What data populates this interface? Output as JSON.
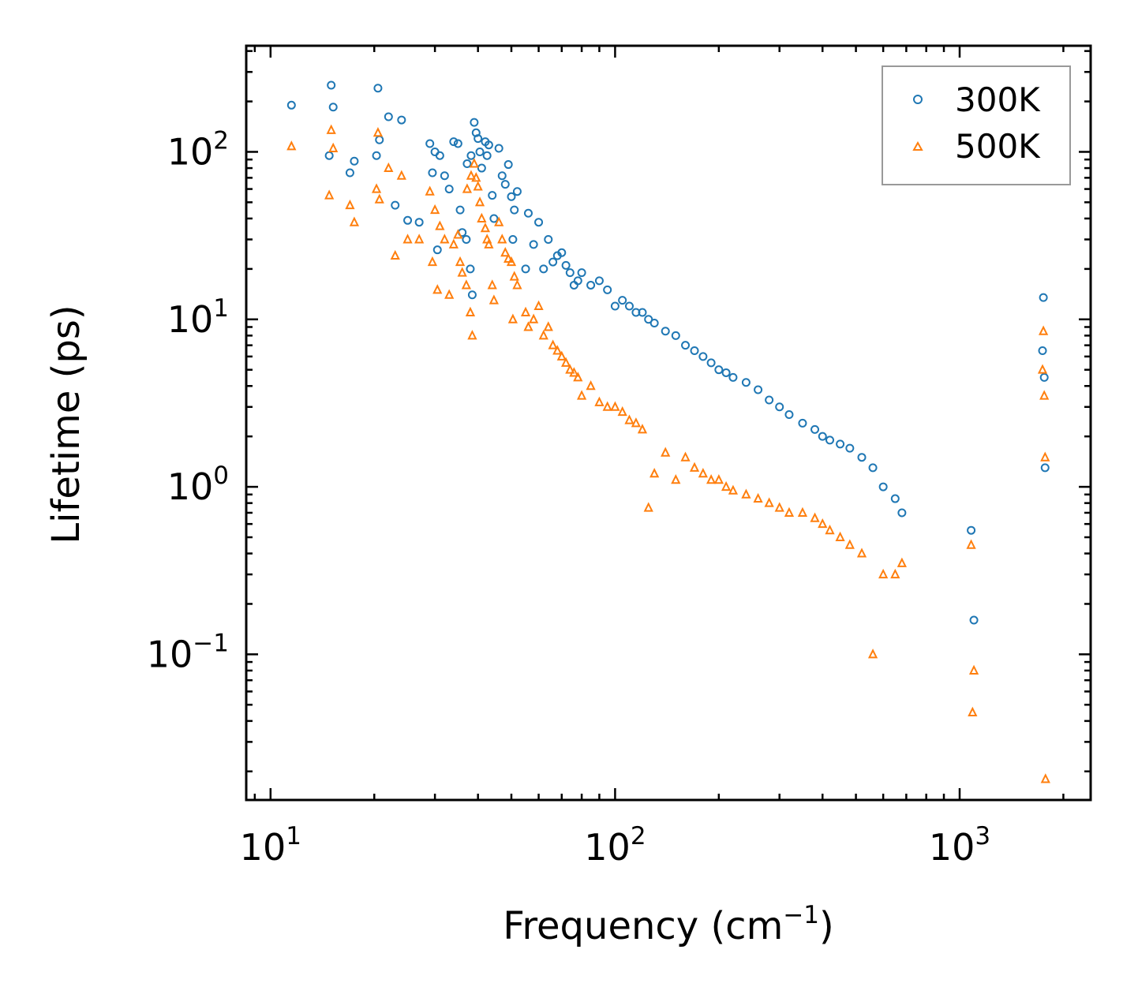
{
  "chart_data": {
    "type": "scatter",
    "title": "",
    "xlabel_base": "Frequency (cm",
    "xlabel_sup": "−1",
    "xlabel_end": ")",
    "ylabel": "Lifetime (ps)",
    "xscale": "log",
    "yscale": "log",
    "xlim": [
      8.5,
      2400
    ],
    "ylim": [
      0.0135,
      430
    ],
    "x_ticks": [
      {
        "value": 10,
        "base": "10",
        "exp": "1"
      },
      {
        "value": 100,
        "base": "10",
        "exp": "2"
      },
      {
        "value": 1000,
        "base": "10",
        "exp": "3"
      }
    ],
    "y_ticks": [
      {
        "value": 0.1,
        "base": "10",
        "exp": "−1"
      },
      {
        "value": 1,
        "base": "10",
        "exp": "0"
      },
      {
        "value": 10,
        "base": "10",
        "exp": "1"
      },
      {
        "value": 100,
        "base": "10",
        "exp": "2"
      }
    ],
    "legend_position": "top-right",
    "series": [
      {
        "name": "300K",
        "marker": "circle",
        "color": "#1f77b4",
        "points": [
          [
            11.5,
            190
          ],
          [
            15,
            250
          ],
          [
            15.2,
            185
          ],
          [
            14.8,
            95
          ],
          [
            17,
            75
          ],
          [
            17.5,
            88
          ],
          [
            20.5,
            240
          ],
          [
            20.3,
            95
          ],
          [
            20.7,
            118
          ],
          [
            22,
            162
          ],
          [
            24,
            155
          ],
          [
            23,
            48
          ],
          [
            25,
            39
          ],
          [
            27,
            38
          ],
          [
            29,
            112
          ],
          [
            30,
            100
          ],
          [
            31,
            95
          ],
          [
            29.5,
            75
          ],
          [
            32,
            72
          ],
          [
            33,
            60
          ],
          [
            34,
            115
          ],
          [
            35,
            112
          ],
          [
            30.5,
            26
          ],
          [
            36,
            33
          ],
          [
            35.5,
            45
          ],
          [
            37,
            30
          ],
          [
            38,
            20
          ],
          [
            38.5,
            14
          ],
          [
            37.2,
            85
          ],
          [
            38.2,
            95
          ],
          [
            39,
            150
          ],
          [
            39.5,
            130
          ],
          [
            40,
            120
          ],
          [
            40.5,
            100
          ],
          [
            41,
            80
          ],
          [
            42,
            115
          ],
          [
            42.5,
            95
          ],
          [
            43,
            110
          ],
          [
            44,
            55
          ],
          [
            44.5,
            40
          ],
          [
            46,
            105
          ],
          [
            47,
            72
          ],
          [
            48,
            64
          ],
          [
            49,
            84
          ],
          [
            50,
            54
          ],
          [
            51,
            45
          ],
          [
            52,
            58
          ],
          [
            50.5,
            30
          ],
          [
            55,
            20
          ],
          [
            56,
            43
          ],
          [
            58,
            28
          ],
          [
            60,
            38
          ],
          [
            62,
            20
          ],
          [
            64,
            30
          ],
          [
            66,
            22
          ],
          [
            68,
            24
          ],
          [
            70,
            25
          ],
          [
            72,
            21
          ],
          [
            74,
            19
          ],
          [
            76,
            16
          ],
          [
            78,
            17
          ],
          [
            80,
            19
          ],
          [
            85,
            16
          ],
          [
            90,
            17
          ],
          [
            95,
            15
          ],
          [
            100,
            12
          ],
          [
            105,
            13
          ],
          [
            110,
            12
          ],
          [
            115,
            11
          ],
          [
            120,
            11
          ],
          [
            125,
            10
          ],
          [
            130,
            9.5
          ],
          [
            140,
            8.5
          ],
          [
            150,
            8
          ],
          [
            160,
            7
          ],
          [
            170,
            6.5
          ],
          [
            180,
            6
          ],
          [
            190,
            5.5
          ],
          [
            200,
            5
          ],
          [
            210,
            4.8
          ],
          [
            220,
            4.5
          ],
          [
            240,
            4.2
          ],
          [
            260,
            3.8
          ],
          [
            280,
            3.3
          ],
          [
            300,
            3
          ],
          [
            320,
            2.7
          ],
          [
            350,
            2.4
          ],
          [
            380,
            2.2
          ],
          [
            400,
            2
          ],
          [
            420,
            1.9
          ],
          [
            450,
            1.8
          ],
          [
            480,
            1.7
          ],
          [
            520,
            1.5
          ],
          [
            560,
            1.3
          ],
          [
            600,
            1
          ],
          [
            650,
            0.85
          ],
          [
            680,
            0.7
          ],
          [
            1080,
            0.55
          ],
          [
            1100,
            0.16
          ],
          [
            1750,
            13.5
          ],
          [
            1740,
            6.5
          ],
          [
            1760,
            4.5
          ],
          [
            1770,
            1.3
          ]
        ]
      },
      {
        "name": "500K",
        "marker": "triangle",
        "color": "#ff7f0e",
        "points": [
          [
            11.5,
            108
          ],
          [
            15,
            135
          ],
          [
            15.2,
            105
          ],
          [
            14.8,
            55
          ],
          [
            17,
            48
          ],
          [
            17.5,
            38
          ],
          [
            20.5,
            130
          ],
          [
            20.3,
            60
          ],
          [
            20.7,
            52
          ],
          [
            22,
            80
          ],
          [
            24,
            72
          ],
          [
            23,
            24
          ],
          [
            25,
            30
          ],
          [
            27,
            30
          ],
          [
            29,
            58
          ],
          [
            30,
            45
          ],
          [
            31,
            36
          ],
          [
            29.5,
            22
          ],
          [
            32,
            30
          ],
          [
            33,
            14
          ],
          [
            34,
            28
          ],
          [
            35,
            32
          ],
          [
            30.5,
            15
          ],
          [
            36,
            19
          ],
          [
            35.5,
            22
          ],
          [
            37,
            16
          ],
          [
            38,
            11
          ],
          [
            38.5,
            8
          ],
          [
            37.2,
            60
          ],
          [
            38.2,
            72
          ],
          [
            39,
            85
          ],
          [
            39.5,
            70
          ],
          [
            40,
            62
          ],
          [
            40.5,
            50
          ],
          [
            41,
            40
          ],
          [
            42,
            35
          ],
          [
            42.5,
            30
          ],
          [
            43,
            28
          ],
          [
            44,
            16
          ],
          [
            44.5,
            13
          ],
          [
            46,
            38
          ],
          [
            47,
            30
          ],
          [
            48,
            25
          ],
          [
            49,
            23
          ],
          [
            50,
            22
          ],
          [
            51,
            18
          ],
          [
            52,
            16
          ],
          [
            50.5,
            10
          ],
          [
            55,
            11
          ],
          [
            56,
            9
          ],
          [
            58,
            10
          ],
          [
            60,
            12
          ],
          [
            62,
            8
          ],
          [
            64,
            9
          ],
          [
            66,
            7
          ],
          [
            68,
            6.5
          ],
          [
            70,
            6
          ],
          [
            72,
            5.5
          ],
          [
            74,
            5
          ],
          [
            76,
            4.8
          ],
          [
            78,
            4.5
          ],
          [
            80,
            3.5
          ],
          [
            85,
            4
          ],
          [
            90,
            3.2
          ],
          [
            95,
            3
          ],
          [
            100,
            3
          ],
          [
            105,
            2.8
          ],
          [
            110,
            2.5
          ],
          [
            115,
            2.4
          ],
          [
            120,
            2.2
          ],
          [
            125,
            0.75
          ],
          [
            130,
            1.2
          ],
          [
            140,
            1.6
          ],
          [
            150,
            1.1
          ],
          [
            160,
            1.5
          ],
          [
            170,
            1.3
          ],
          [
            180,
            1.2
          ],
          [
            190,
            1.1
          ],
          [
            200,
            1.1
          ],
          [
            210,
            1
          ],
          [
            220,
            0.95
          ],
          [
            240,
            0.9
          ],
          [
            260,
            0.85
          ],
          [
            280,
            0.8
          ],
          [
            300,
            0.75
          ],
          [
            320,
            0.7
          ],
          [
            350,
            0.7
          ],
          [
            380,
            0.65
          ],
          [
            400,
            0.6
          ],
          [
            420,
            0.55
          ],
          [
            450,
            0.5
          ],
          [
            480,
            0.45
          ],
          [
            520,
            0.4
          ],
          [
            560,
            0.1
          ],
          [
            600,
            0.3
          ],
          [
            650,
            0.3
          ],
          [
            680,
            0.35
          ],
          [
            1080,
            0.45
          ],
          [
            1090,
            0.045
          ],
          [
            1100,
            0.08
          ],
          [
            1750,
            8.5
          ],
          [
            1740,
            5
          ],
          [
            1760,
            3.5
          ],
          [
            1770,
            1.5
          ],
          [
            1775,
            0.018
          ]
        ]
      }
    ]
  }
}
